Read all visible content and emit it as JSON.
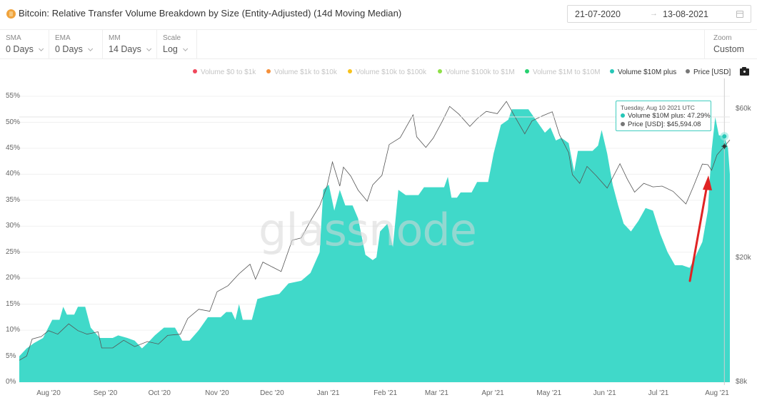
{
  "header": {
    "title": "Bitcoin: Relative Transfer Volume Breakdown by Size (Entity-Adjusted) (14d Moving Median)",
    "asset_icon": "bitcoin-icon",
    "date_from": "21-07-2020",
    "date_arrow": "→",
    "date_to": "13-08-2021",
    "calendar_icon": "calendar-icon"
  },
  "toolbar": {
    "sma": {
      "label": "SMA",
      "value": "0 Days"
    },
    "ema": {
      "label": "EMA",
      "value": "0 Days"
    },
    "mm": {
      "label": "MM",
      "value": "14 Days"
    },
    "scale": {
      "label": "Scale",
      "value": "Log"
    },
    "zoom": {
      "label": "Zoom",
      "value": "Custom"
    }
  },
  "legend": [
    {
      "label": "Volume $0 to $1k",
      "color": "#f0475b",
      "active": false
    },
    {
      "label": "Volume $1k to $10k",
      "color": "#f5903a",
      "active": false
    },
    {
      "label": "Volume $10k to $100k",
      "color": "#f7c21b",
      "active": false
    },
    {
      "label": "Volume $100k to $1M",
      "color": "#8ee047",
      "active": false
    },
    {
      "label": "Volume $1M to $10M",
      "color": "#27d170",
      "active": false
    },
    {
      "label": "Volume $10M plus",
      "color": "#26c7b7",
      "active": true
    },
    {
      "label": "Price [USD]",
      "color": "#777777",
      "active": true
    }
  ],
  "camera_icon": "camera-icon",
  "watermark": "glassnode",
  "tooltip": {
    "date": "Tuesday, Aug 10 2021 UTC",
    "series_label": "Volume $10M plus: 47.29%",
    "price_label": "Price [USD]: $45,594.08",
    "series_color": "#26c7b7",
    "price_color": "#777777"
  },
  "colors": {
    "area_fill": "#40d9c9",
    "price_line": "#555555",
    "arrow": "#e02424",
    "grid": "#f0f0f0"
  },
  "chart_data": {
    "type": "area",
    "title": "Bitcoin: Relative Transfer Volume Breakdown by Size (Entity-Adjusted) (14d Moving Median)",
    "xlabel": "",
    "ylabel": "",
    "y_left_ticks": [
      "0%",
      "5%",
      "10%",
      "15%",
      "20%",
      "25%",
      "30%",
      "35%",
      "40%",
      "45%",
      "50%",
      "55%"
    ],
    "y_right_ticks": [
      "$8k",
      "$20k",
      "$60k"
    ],
    "x_ticks": [
      "Aug '20",
      "Sep '20",
      "Oct '20",
      "Nov '20",
      "Dec '20",
      "Jan '21",
      "Feb '21",
      "Mar '21",
      "Apr '21",
      "May '21",
      "Jun '21",
      "Jul '21",
      "Aug '21"
    ],
    "ylim_left": [
      0,
      55
    ],
    "y_right_scale": "log",
    "legend_position": "top",
    "grid": true,
    "series": [
      {
        "name": "Volume $10M plus",
        "unit": "%",
        "points": [
          [
            "2020-07-21",
            5.0
          ],
          [
            "2020-07-25",
            6.5
          ],
          [
            "2020-07-29",
            7.5
          ],
          [
            "2020-08-03",
            8.5
          ],
          [
            "2020-08-08",
            12.0
          ],
          [
            "2020-08-12",
            12.0
          ],
          [
            "2020-08-14",
            14.5
          ],
          [
            "2020-08-16",
            13.0
          ],
          [
            "2020-08-20",
            13.0
          ],
          [
            "2020-08-22",
            14.5
          ],
          [
            "2020-08-26",
            14.5
          ],
          [
            "2020-08-29",
            10.5
          ],
          [
            "2020-09-03",
            8.5
          ],
          [
            "2020-09-10",
            8.5
          ],
          [
            "2020-09-13",
            9.0
          ],
          [
            "2020-09-18",
            8.5
          ],
          [
            "2020-09-22",
            8.0
          ],
          [
            "2020-09-26",
            6.5
          ],
          [
            "2020-09-29",
            7.5
          ],
          [
            "2020-10-03",
            9.0
          ],
          [
            "2020-10-08",
            10.5
          ],
          [
            "2020-10-14",
            10.5
          ],
          [
            "2020-10-18",
            8.0
          ],
          [
            "2020-10-22",
            8.0
          ],
          [
            "2020-10-27",
            10.0
          ],
          [
            "2020-11-01",
            12.5
          ],
          [
            "2020-11-08",
            12.5
          ],
          [
            "2020-11-11",
            13.5
          ],
          [
            "2020-11-14",
            13.5
          ],
          [
            "2020-11-16",
            12.0
          ],
          [
            "2020-11-18",
            15.0
          ],
          [
            "2020-11-20",
            12.0
          ],
          [
            "2020-11-25",
            12.0
          ],
          [
            "2020-11-28",
            16.0
          ],
          [
            "2020-12-03",
            16.5
          ],
          [
            "2020-12-10",
            17.0
          ],
          [
            "2020-12-15",
            19.0
          ],
          [
            "2020-12-22",
            19.5
          ],
          [
            "2020-12-27",
            21.0
          ],
          [
            "2021-01-01",
            25.0
          ],
          [
            "2021-01-03",
            37.0
          ],
          [
            "2021-01-06",
            38.0
          ],
          [
            "2021-01-09",
            33.0
          ],
          [
            "2021-01-12",
            37.0
          ],
          [
            "2021-01-15",
            34.0
          ],
          [
            "2021-01-19",
            34.0
          ],
          [
            "2021-01-22",
            31.5
          ],
          [
            "2021-01-26",
            24.5
          ],
          [
            "2021-01-30",
            23.5
          ],
          [
            "2021-02-01",
            24.0
          ],
          [
            "2021-02-03",
            29.0
          ],
          [
            "2021-02-07",
            30.5
          ],
          [
            "2021-02-10",
            26.0
          ],
          [
            "2021-02-13",
            37.0
          ],
          [
            "2021-02-17",
            36.0
          ],
          [
            "2021-02-24",
            36.0
          ],
          [
            "2021-02-27",
            37.5
          ],
          [
            "2021-03-10",
            37.5
          ],
          [
            "2021-03-12",
            39.5
          ],
          [
            "2021-03-14",
            35.5
          ],
          [
            "2021-03-17",
            35.5
          ],
          [
            "2021-03-19",
            36.5
          ],
          [
            "2021-03-25",
            36.5
          ],
          [
            "2021-03-28",
            38.5
          ],
          [
            "2021-04-03",
            38.5
          ],
          [
            "2021-04-06",
            44.0
          ],
          [
            "2021-04-10",
            49.5
          ],
          [
            "2021-04-14",
            50.5
          ],
          [
            "2021-04-16",
            52.5
          ],
          [
            "2021-04-25",
            52.5
          ],
          [
            "2021-04-29",
            50.5
          ],
          [
            "2021-05-04",
            48.0
          ],
          [
            "2021-05-07",
            49.0
          ],
          [
            "2021-05-10",
            46.5
          ],
          [
            "2021-05-13",
            47.0
          ],
          [
            "2021-05-17",
            46.0
          ],
          [
            "2021-05-20",
            40.5
          ],
          [
            "2021-05-22",
            44.5
          ],
          [
            "2021-05-30",
            44.5
          ],
          [
            "2021-06-02",
            45.5
          ],
          [
            "2021-06-04",
            48.5
          ],
          [
            "2021-06-07",
            44.0
          ],
          [
            "2021-06-10",
            38.0
          ],
          [
            "2021-06-13",
            34.0
          ],
          [
            "2021-06-16",
            30.5
          ],
          [
            "2021-06-20",
            29.0
          ],
          [
            "2021-06-24",
            31.0
          ],
          [
            "2021-06-28",
            33.5
          ],
          [
            "2021-07-02",
            33.0
          ],
          [
            "2021-07-06",
            28.5
          ],
          [
            "2021-07-10",
            25.0
          ],
          [
            "2021-07-14",
            22.5
          ],
          [
            "2021-07-18",
            22.5
          ],
          [
            "2021-07-22",
            22.0
          ],
          [
            "2021-07-25",
            24.0
          ],
          [
            "2021-07-29",
            27.0
          ],
          [
            "2021-08-01",
            33.0
          ],
          [
            "2021-08-03",
            44.5
          ],
          [
            "2021-08-05",
            51.0
          ],
          [
            "2021-08-07",
            47.5
          ],
          [
            "2021-08-10",
            47.29
          ],
          [
            "2021-08-12",
            45.0
          ],
          [
            "2021-08-13",
            40.0
          ]
        ]
      },
      {
        "name": "Price [USD]",
        "unit": "USD",
        "axis": "right",
        "points": [
          [
            "2020-07-21",
            9400
          ],
          [
            "2020-07-25",
            9700
          ],
          [
            "2020-07-28",
            11000
          ],
          [
            "2020-08-02",
            11200
          ],
          [
            "2020-08-06",
            11700
          ],
          [
            "2020-08-11",
            11400
          ],
          [
            "2020-08-17",
            12300
          ],
          [
            "2020-08-22",
            11700
          ],
          [
            "2020-08-27",
            11400
          ],
          [
            "2020-09-02",
            11600
          ],
          [
            "2020-09-04",
            10300
          ],
          [
            "2020-09-10",
            10300
          ],
          [
            "2020-09-16",
            10900
          ],
          [
            "2020-09-22",
            10400
          ],
          [
            "2020-09-29",
            10800
          ],
          [
            "2020-10-05",
            10600
          ],
          [
            "2020-10-10",
            11300
          ],
          [
            "2020-10-17",
            11400
          ],
          [
            "2020-10-21",
            12800
          ],
          [
            "2020-10-27",
            13700
          ],
          [
            "2020-11-02",
            13500
          ],
          [
            "2020-11-06",
            15600
          ],
          [
            "2020-11-12",
            16300
          ],
          [
            "2020-11-18",
            17800
          ],
          [
            "2020-11-24",
            19100
          ],
          [
            "2020-11-27",
            17100
          ],
          [
            "2020-12-01",
            19400
          ],
          [
            "2020-12-11",
            18100
          ],
          [
            "2020-12-17",
            22800
          ],
          [
            "2020-12-22",
            23200
          ],
          [
            "2020-12-27",
            26300
          ],
          [
            "2021-01-01",
            29400
          ],
          [
            "2021-01-05",
            33900
          ],
          [
            "2021-01-08",
            40600
          ],
          [
            "2021-01-12",
            34000
          ],
          [
            "2021-01-14",
            39100
          ],
          [
            "2021-01-18",
            36600
          ],
          [
            "2021-01-22",
            33000
          ],
          [
            "2021-01-27",
            30400
          ],
          [
            "2021-01-30",
            34300
          ],
          [
            "2021-02-04",
            36800
          ],
          [
            "2021-02-08",
            46200
          ],
          [
            "2021-02-14",
            48600
          ],
          [
            "2021-02-21",
            57500
          ],
          [
            "2021-02-23",
            48900
          ],
          [
            "2021-02-28",
            45200
          ],
          [
            "2021-03-04",
            48400
          ],
          [
            "2021-03-09",
            54900
          ],
          [
            "2021-03-13",
            61200
          ],
          [
            "2021-03-18",
            57800
          ],
          [
            "2021-03-24",
            52800
          ],
          [
            "2021-03-28",
            55900
          ],
          [
            "2021-04-02",
            59000
          ],
          [
            "2021-04-08",
            58000
          ],
          [
            "2021-04-13",
            63500
          ],
          [
            "2021-04-18",
            56200
          ],
          [
            "2021-04-23",
            50000
          ],
          [
            "2021-04-27",
            55000
          ],
          [
            "2021-05-03",
            57200
          ],
          [
            "2021-05-08",
            58800
          ],
          [
            "2021-05-12",
            49600
          ],
          [
            "2021-05-17",
            43500
          ],
          [
            "2021-05-19",
            37000
          ],
          [
            "2021-05-23",
            34700
          ],
          [
            "2021-05-27",
            39300
          ],
          [
            "2021-06-01",
            36700
          ],
          [
            "2021-06-07",
            33500
          ],
          [
            "2021-06-14",
            40100
          ],
          [
            "2021-06-18",
            35800
          ],
          [
            "2021-06-22",
            32500
          ],
          [
            "2021-06-27",
            34700
          ],
          [
            "2021-07-02",
            33800
          ],
          [
            "2021-07-07",
            34000
          ],
          [
            "2021-07-13",
            32700
          ],
          [
            "2021-07-20",
            29800
          ],
          [
            "2021-07-24",
            33800
          ],
          [
            "2021-07-29",
            40000
          ],
          [
            "2021-08-01",
            39800
          ],
          [
            "2021-08-03",
            38200
          ],
          [
            "2021-08-06",
            42800
          ],
          [
            "2021-08-10",
            45594.08
          ],
          [
            "2021-08-13",
            47800
          ]
        ]
      }
    ],
    "annotations": [
      {
        "type": "arrow",
        "color": "#e02424",
        "from": [
          "2021-07-26",
          "bottom-area ~20%"
        ],
        "to": [
          "2021-08-02",
          "~39%"
        ]
      },
      {
        "type": "crosshair",
        "x": "2021-08-10"
      }
    ]
  }
}
